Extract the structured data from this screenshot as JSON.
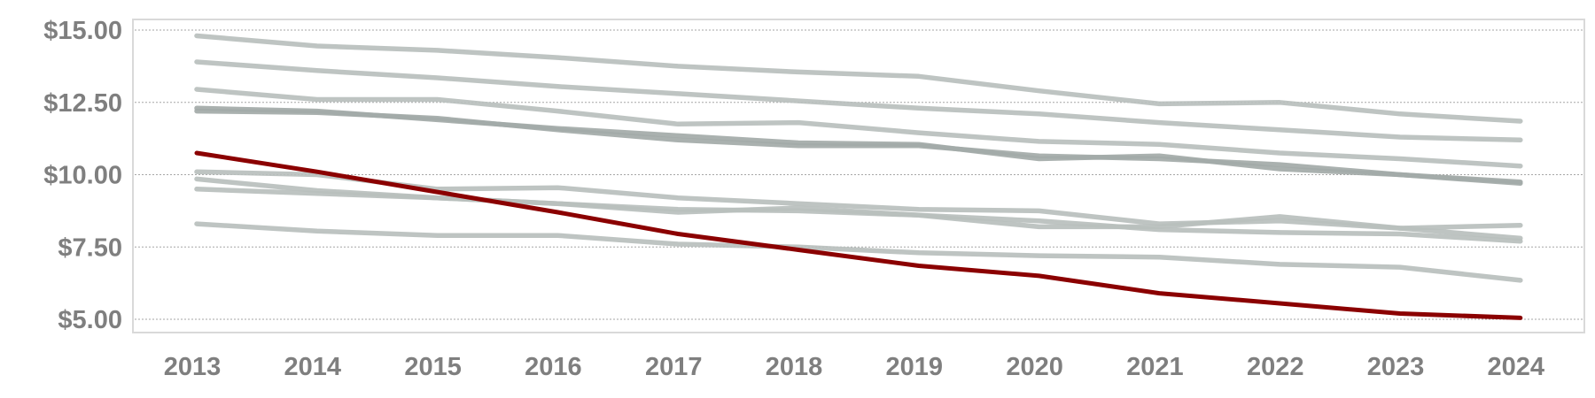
{
  "chart_data": {
    "type": "line",
    "title": "",
    "xlabel": "",
    "ylabel": "",
    "categories": [
      "2013",
      "2014",
      "2015",
      "2016",
      "2017",
      "2018",
      "2019",
      "2020",
      "2021",
      "2022",
      "2023",
      "2024"
    ],
    "ylim": [
      5.0,
      15.0
    ],
    "y_ticks": [
      "$15.00",
      "$12.50",
      "$10.00",
      "$7.50",
      "$5.00"
    ],
    "y_tick_values": [
      15.0,
      12.5,
      10.0,
      7.5,
      5.0
    ],
    "grid": "horizontal dotted",
    "legend": "none",
    "series": [
      {
        "values": [
          14.8,
          14.45,
          14.3,
          14.05,
          13.75,
          13.55,
          13.4,
          12.9,
          12.45,
          12.5,
          12.1,
          11.85
        ],
        "color": "#b9bfbd"
      },
      {
        "values": [
          13.9,
          13.6,
          13.35,
          13.05,
          12.8,
          12.55,
          12.3,
          12.1,
          11.8,
          11.55,
          11.3,
          11.2
        ],
        "color": "#b9bfbd"
      },
      {
        "values": [
          12.95,
          12.6,
          12.6,
          12.2,
          11.75,
          11.8,
          11.45,
          11.15,
          11.05,
          10.75,
          10.55,
          10.3
        ],
        "color": "#b9bfbd"
      },
      {
        "values": [
          12.3,
          12.2,
          11.9,
          11.6,
          11.35,
          11.1,
          11.05,
          10.55,
          10.65,
          10.2,
          10.0,
          9.75
        ],
        "color": "#a3aaa8"
      },
      {
        "values": [
          12.2,
          12.15,
          11.95,
          11.55,
          11.2,
          11.0,
          11.0,
          10.65,
          10.55,
          10.35,
          10.0,
          9.7
        ],
        "color": "#a3aaa8"
      },
      {
        "values": [
          10.1,
          10.0,
          9.5,
          9.55,
          9.2,
          9.0,
          8.8,
          8.75,
          8.3,
          8.4,
          8.15,
          7.8
        ],
        "color": "#b9bfbd"
      },
      {
        "values": [
          9.85,
          9.45,
          9.2,
          9.0,
          8.8,
          8.75,
          8.6,
          8.2,
          8.2,
          8.55,
          8.15,
          8.25
        ],
        "color": "#b9bfbd"
      },
      {
        "values": [
          9.5,
          9.35,
          9.2,
          9.0,
          8.7,
          8.85,
          8.6,
          8.4,
          8.1,
          8.0,
          7.95,
          7.7
        ],
        "color": "#b9bfbd"
      },
      {
        "values": [
          8.3,
          8.05,
          7.9,
          7.9,
          7.6,
          7.5,
          7.3,
          7.2,
          7.15,
          6.9,
          6.8,
          6.35
        ],
        "color": "#b9bfbd"
      },
      {
        "values": [
          10.75,
          10.1,
          9.4,
          8.7,
          7.95,
          7.4,
          6.85,
          6.5,
          5.9,
          5.55,
          5.2,
          5.05
        ],
        "color": "#8b0000",
        "highlight": true
      }
    ]
  }
}
